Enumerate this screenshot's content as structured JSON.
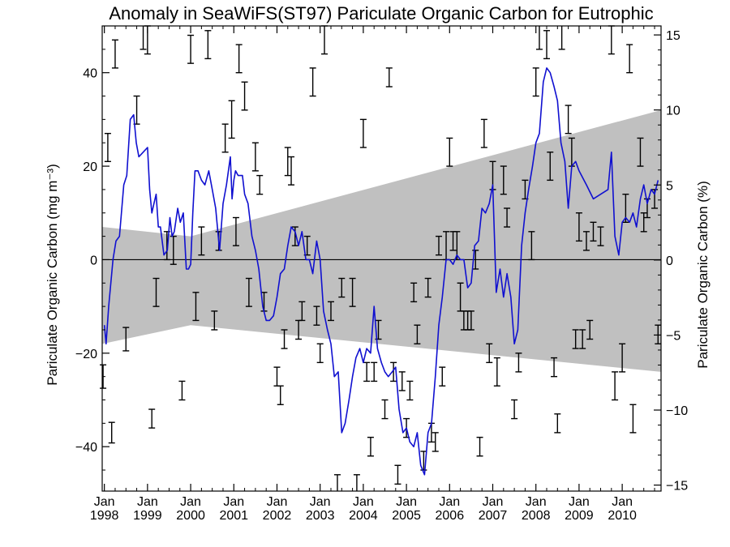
{
  "chart_data": {
    "type": "line",
    "title": "Anomaly in SeaWiFS(ST97) Pariculate Organic Carbon for Eutrophic",
    "ylabel_left": "Pariculate Organic Carbon (mg m⁻³)",
    "ylabel_right": "Pariculate Organic Carbon (%)",
    "xlim": [
      1997.95,
      2010.9
    ],
    "ylim_left": [
      -49.5,
      50
    ],
    "ylim_right": [
      -15.4,
      15.6
    ],
    "x_tick_labels": [
      {
        "month": "Jan",
        "year": "1998",
        "x": 1998
      },
      {
        "month": "Jan",
        "year": "1999",
        "x": 1999
      },
      {
        "month": "Jan",
        "year": "2000",
        "x": 2000
      },
      {
        "month": "Jan",
        "year": "2001",
        "x": 2001
      },
      {
        "month": "Jan",
        "year": "2002",
        "x": 2002
      },
      {
        "month": "Jan",
        "year": "2003",
        "x": 2003
      },
      {
        "month": "Jan",
        "year": "2004",
        "x": 2004
      },
      {
        "month": "Jan",
        "year": "2005",
        "x": 2005
      },
      {
        "month": "Jan",
        "year": "2006",
        "x": 2006
      },
      {
        "month": "Jan",
        "year": "2007",
        "x": 2007
      },
      {
        "month": "Jan",
        "year": "2008",
        "x": 2008
      },
      {
        "month": "Jan",
        "year": "2009",
        "x": 2009
      },
      {
        "month": "Jan",
        "year": "2010",
        "x": 2010
      }
    ],
    "y_ticks_left": [
      -40,
      -20,
      0,
      20,
      40
    ],
    "y_ticks_right": [
      -15,
      -10,
      -5,
      0,
      5,
      10,
      15
    ],
    "zero_line": 0,
    "uncertainty_band": {
      "color": "#c0c0c0",
      "upper": [
        [
          1997.95,
          7
        ],
        [
          2000.0,
          5
        ],
        [
          2010.9,
          32
        ]
      ],
      "lower": [
        [
          1997.95,
          -18
        ],
        [
          2000.0,
          -14
        ],
        [
          2010.9,
          -24
        ]
      ]
    },
    "series": [
      {
        "color": "#1010d0",
        "points": [
          [
            1998.0,
            -14
          ],
          [
            1998.04,
            -18
          ],
          [
            1998.1,
            -10
          ],
          [
            1998.2,
            0
          ],
          [
            1998.27,
            4
          ],
          [
            1998.35,
            5
          ],
          [
            1998.45,
            16
          ],
          [
            1998.52,
            18
          ],
          [
            1998.6,
            30
          ],
          [
            1998.68,
            31
          ],
          [
            1998.74,
            25
          ],
          [
            1998.8,
            22
          ],
          [
            1998.9,
            23
          ],
          [
            1999.0,
            24
          ],
          [
            1999.05,
            15
          ],
          [
            1999.1,
            10
          ],
          [
            1999.15,
            12
          ],
          [
            1999.2,
            14
          ],
          [
            1999.25,
            7
          ],
          [
            1999.3,
            7
          ],
          [
            1999.38,
            1
          ],
          [
            1999.46,
            2
          ],
          [
            1999.52,
            9
          ],
          [
            1999.57,
            5
          ],
          [
            1999.62,
            6
          ],
          [
            1999.7,
            11
          ],
          [
            1999.76,
            8
          ],
          [
            1999.83,
            10
          ],
          [
            1999.9,
            -2
          ],
          [
            1999.95,
            -2
          ],
          [
            2000.0,
            -1
          ],
          [
            2000.05,
            10
          ],
          [
            2000.1,
            19
          ],
          [
            2000.17,
            19
          ],
          [
            2000.25,
            17
          ],
          [
            2000.33,
            16
          ],
          [
            2000.42,
            19
          ],
          [
            2000.5,
            15
          ],
          [
            2000.58,
            11
          ],
          [
            2000.67,
            2
          ],
          [
            2000.75,
            12
          ],
          [
            2000.83,
            16
          ],
          [
            2000.92,
            22
          ],
          [
            2000.96,
            13
          ],
          [
            2001.0,
            17
          ],
          [
            2001.04,
            19
          ],
          [
            2001.1,
            18
          ],
          [
            2001.2,
            18
          ],
          [
            2001.25,
            14
          ],
          [
            2001.33,
            12
          ],
          [
            2001.42,
            5
          ],
          [
            2001.5,
            2
          ],
          [
            2001.58,
            -2
          ],
          [
            2001.67,
            -10
          ],
          [
            2001.75,
            -13
          ],
          [
            2001.83,
            -13
          ],
          [
            2001.92,
            -12
          ],
          [
            2002.0,
            -8
          ],
          [
            2002.08,
            -3
          ],
          [
            2002.17,
            -2
          ],
          [
            2002.25,
            3
          ],
          [
            2002.33,
            7
          ],
          [
            2002.42,
            6
          ],
          [
            2002.5,
            3
          ],
          [
            2002.58,
            6
          ],
          [
            2002.67,
            0
          ],
          [
            2002.75,
            0
          ],
          [
            2002.83,
            -3
          ],
          [
            2002.92,
            4
          ],
          [
            2003.0,
            0
          ],
          [
            2003.08,
            -11
          ],
          [
            2003.17,
            -15
          ],
          [
            2003.25,
            -18
          ],
          [
            2003.33,
            -25
          ],
          [
            2003.42,
            -24
          ],
          [
            2003.5,
            -37
          ],
          [
            2003.58,
            -35
          ],
          [
            2003.67,
            -30
          ],
          [
            2003.75,
            -25
          ],
          [
            2003.83,
            -21
          ],
          [
            2003.92,
            -19
          ],
          [
            2004.0,
            -22
          ],
          [
            2004.08,
            -19
          ],
          [
            2004.17,
            -20
          ],
          [
            2004.25,
            -10
          ],
          [
            2004.33,
            -19
          ],
          [
            2004.42,
            -22
          ],
          [
            2004.5,
            -24
          ],
          [
            2004.58,
            -25
          ],
          [
            2004.67,
            -24
          ],
          [
            2004.75,
            -23
          ],
          [
            2004.83,
            -32
          ],
          [
            2004.92,
            -37
          ],
          [
            2005.0,
            -36
          ],
          [
            2005.08,
            -39
          ],
          [
            2005.17,
            -40
          ],
          [
            2005.25,
            -37
          ],
          [
            2005.33,
            -44
          ],
          [
            2005.42,
            -46
          ],
          [
            2005.5,
            -37
          ],
          [
            2005.58,
            -35
          ],
          [
            2005.67,
            -25
          ],
          [
            2005.75,
            -14
          ],
          [
            2005.83,
            -8
          ],
          [
            2005.92,
            0
          ],
          [
            2006.0,
            0
          ],
          [
            2006.08,
            -1
          ],
          [
            2006.17,
            1
          ],
          [
            2006.25,
            0
          ],
          [
            2006.33,
            0
          ],
          [
            2006.42,
            -6
          ],
          [
            2006.5,
            -5
          ],
          [
            2006.58,
            3
          ],
          [
            2006.67,
            4
          ],
          [
            2006.75,
            11
          ],
          [
            2006.83,
            10
          ],
          [
            2006.92,
            12
          ],
          [
            2007.0,
            16
          ],
          [
            2007.08,
            -7
          ],
          [
            2007.17,
            -2
          ],
          [
            2007.25,
            -8
          ],
          [
            2007.33,
            -3
          ],
          [
            2007.42,
            -8
          ],
          [
            2007.5,
            -18
          ],
          [
            2007.58,
            -15
          ],
          [
            2007.67,
            3
          ],
          [
            2007.75,
            10
          ],
          [
            2007.83,
            15
          ],
          [
            2007.92,
            20
          ],
          [
            2008.0,
            25
          ],
          [
            2008.08,
            27
          ],
          [
            2008.17,
            38
          ],
          [
            2008.25,
            41
          ],
          [
            2008.33,
            40
          ],
          [
            2008.42,
            37
          ],
          [
            2008.5,
            34
          ],
          [
            2008.58,
            25
          ],
          [
            2008.67,
            21
          ],
          [
            2008.75,
            11
          ],
          [
            2008.83,
            20
          ],
          [
            2008.92,
            21
          ],
          [
            2009.0,
            19
          ],
          [
            2009.17,
            16
          ],
          [
            2009.33,
            13
          ],
          [
            2009.5,
            14
          ],
          [
            2009.67,
            15
          ],
          [
            2009.75,
            23
          ],
          [
            2009.83,
            5
          ],
          [
            2009.92,
            1
          ],
          [
            2010.0,
            8
          ],
          [
            2010.08,
            9
          ],
          [
            2010.17,
            8
          ],
          [
            2010.25,
            10
          ],
          [
            2010.33,
            7
          ],
          [
            2010.42,
            13
          ],
          [
            2010.5,
            16
          ],
          [
            2010.58,
            12
          ],
          [
            2010.67,
            15
          ],
          [
            2010.75,
            14
          ],
          [
            2010.83,
            17
          ]
        ]
      }
    ],
    "error_bars": [
      [
        1997.97,
        -25,
        2.5
      ],
      [
        1998.08,
        24,
        3
      ],
      [
        1998.17,
        -37,
        2.2
      ],
      [
        1998.25,
        44,
        3
      ],
      [
        1998.5,
        -17,
        2.5
      ],
      [
        1998.75,
        32,
        3
      ],
      [
        1998.9,
        48,
        3
      ],
      [
        1999.0,
        47,
        3
      ],
      [
        1999.1,
        -34,
        2
      ],
      [
        1999.2,
        -7,
        3
      ],
      [
        1999.45,
        3,
        3
      ],
      [
        1999.6,
        2,
        3
      ],
      [
        1999.8,
        -28,
        2
      ],
      [
        2000.0,
        45,
        3
      ],
      [
        2000.12,
        -10,
        3
      ],
      [
        2000.25,
        4,
        3
      ],
      [
        2000.4,
        46,
        3
      ],
      [
        2000.55,
        -13,
        2
      ],
      [
        2000.65,
        4,
        2
      ],
      [
        2000.8,
        26,
        3
      ],
      [
        2000.95,
        30,
        4
      ],
      [
        2001.05,
        6,
        3
      ],
      [
        2001.12,
        43,
        3
      ],
      [
        2001.25,
        35,
        3
      ],
      [
        2001.35,
        -7,
        3
      ],
      [
        2001.5,
        22,
        3
      ],
      [
        2001.6,
        16,
        2
      ],
      [
        2001.7,
        -9,
        2
      ],
      [
        2002.0,
        -25,
        2
      ],
      [
        2002.08,
        -29,
        2
      ],
      [
        2002.17,
        -17,
        2
      ],
      [
        2002.25,
        21,
        3
      ],
      [
        2002.33,
        19,
        3
      ],
      [
        2002.42,
        5,
        2
      ],
      [
        2002.5,
        -15,
        2
      ],
      [
        2002.58,
        -11,
        2
      ],
      [
        2002.7,
        3,
        2
      ],
      [
        2002.83,
        38,
        3
      ],
      [
        2002.92,
        -12,
        2
      ],
      [
        2003.0,
        -20,
        2
      ],
      [
        2003.1,
        47,
        3
      ],
      [
        2003.25,
        -11,
        2
      ],
      [
        2003.4,
        -48,
        2
      ],
      [
        2003.5,
        -6,
        2
      ],
      [
        2003.75,
        -7,
        3
      ],
      [
        2003.85,
        -48,
        2
      ],
      [
        2004.0,
        27,
        3
      ],
      [
        2004.08,
        -24,
        2
      ],
      [
        2004.17,
        -40,
        2
      ],
      [
        2004.25,
        -24,
        2
      ],
      [
        2004.35,
        -15,
        2
      ],
      [
        2004.5,
        -32,
        2
      ],
      [
        2004.6,
        39,
        2
      ],
      [
        2004.7,
        -24,
        2
      ],
      [
        2004.8,
        -46,
        2
      ],
      [
        2004.9,
        -26,
        2
      ],
      [
        2005.0,
        -36,
        2
      ],
      [
        2005.08,
        -28,
        2
      ],
      [
        2005.17,
        -7,
        2
      ],
      [
        2005.25,
        -16,
        2
      ],
      [
        2005.4,
        -43,
        2
      ],
      [
        2005.5,
        -6,
        2
      ],
      [
        2005.58,
        -37,
        2
      ],
      [
        2005.67,
        -39,
        2
      ],
      [
        2005.75,
        3,
        2
      ],
      [
        2005.83,
        -25,
        2
      ],
      [
        2005.92,
        3,
        3
      ],
      [
        2006.0,
        23,
        3
      ],
      [
        2006.08,
        4,
        2
      ],
      [
        2006.17,
        3,
        3
      ],
      [
        2006.25,
        -8,
        3
      ],
      [
        2006.33,
        -13,
        2
      ],
      [
        2006.42,
        -13,
        2
      ],
      [
        2006.5,
        -13,
        2
      ],
      [
        2006.6,
        0,
        2
      ],
      [
        2006.7,
        -40,
        2
      ],
      [
        2006.8,
        27,
        3
      ],
      [
        2006.92,
        -20,
        2
      ],
      [
        2007.0,
        18,
        3
      ],
      [
        2007.1,
        -24,
        3
      ],
      [
        2007.25,
        17,
        3
      ],
      [
        2007.33,
        9,
        2
      ],
      [
        2007.5,
        -32,
        2
      ],
      [
        2007.6,
        -22,
        2
      ],
      [
        2007.75,
        15,
        2
      ],
      [
        2007.9,
        3,
        3
      ],
      [
        2008.0,
        38,
        3
      ],
      [
        2008.08,
        48,
        3
      ],
      [
        2008.25,
        46,
        3
      ],
      [
        2008.33,
        20,
        3
      ],
      [
        2008.42,
        -23,
        2
      ],
      [
        2008.5,
        -35,
        2
      ],
      [
        2008.6,
        48,
        3
      ],
      [
        2008.75,
        30,
        3
      ],
      [
        2008.83,
        23,
        3
      ],
      [
        2008.92,
        -17,
        2
      ],
      [
        2009.0,
        7,
        3
      ],
      [
        2009.08,
        -17,
        2
      ],
      [
        2009.17,
        4,
        2
      ],
      [
        2009.25,
        -15,
        2
      ],
      [
        2009.33,
        6,
        2
      ],
      [
        2009.5,
        5,
        2
      ],
      [
        2009.75,
        47,
        3
      ],
      [
        2009.83,
        -27,
        3
      ],
      [
        2010.0,
        -21,
        3
      ],
      [
        2010.08,
        11,
        3
      ],
      [
        2010.17,
        43,
        3
      ],
      [
        2010.25,
        -34,
        3
      ],
      [
        2010.42,
        23,
        3
      ],
      [
        2010.5,
        8,
        2
      ],
      [
        2010.58,
        11,
        2
      ],
      [
        2010.75,
        13,
        2
      ],
      [
        2010.83,
        -16,
        2
      ]
    ]
  }
}
